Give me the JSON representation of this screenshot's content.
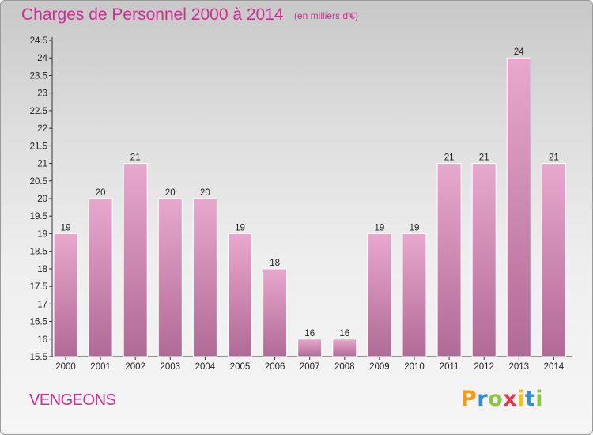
{
  "title": "Charges de Personnel 2000 à 2014",
  "subtitle": "(en milliers d'€)",
  "commune": "VENGEONS",
  "brand": {
    "letters": [
      "P",
      "r",
      "o",
      "x",
      "i",
      "t",
      "i"
    ],
    "colors": [
      "#f29a1a",
      "#2e8fd4",
      "#8cc63f",
      "#e8374a",
      "#f2c21a",
      "#2e8fd4",
      "#8cc63f"
    ]
  },
  "colors": {
    "bar_top": "#e8a8cc",
    "bar_bottom": "#b06a96",
    "text_accent": "#d02c8e"
  },
  "chart_data": {
    "type": "bar",
    "categories": [
      "2000",
      "2001",
      "2002",
      "2003",
      "2004",
      "2005",
      "2006",
      "2007",
      "2008",
      "2009",
      "2010",
      "2011",
      "2012",
      "2013",
      "2014"
    ],
    "values": [
      19,
      20,
      21,
      20,
      20,
      19,
      18,
      16,
      16,
      19,
      19,
      21,
      21,
      24,
      21
    ],
    "data_labels": [
      "19",
      "20",
      "21",
      "20",
      "20",
      "19",
      "18",
      "16",
      "16",
      "19",
      "19",
      "21",
      "21",
      "24",
      "21"
    ],
    "yticks": [
      15.5,
      16,
      16.5,
      17,
      17.5,
      18,
      18.5,
      19,
      19.5,
      20,
      20.5,
      21,
      21.5,
      22,
      22.5,
      23,
      23.5,
      24,
      24.5
    ],
    "ytick_labels": [
      "15.5",
      "16",
      "16.5",
      "17",
      "17.5",
      "18",
      "18.5",
      "19",
      "19.5",
      "20",
      "20.5",
      "21",
      "21.5",
      "22",
      "22.5",
      "23",
      "23.5",
      "24",
      "24.5"
    ],
    "ylim": [
      15.5,
      24.5
    ],
    "grid": false,
    "xlabel": "",
    "ylabel": ""
  }
}
